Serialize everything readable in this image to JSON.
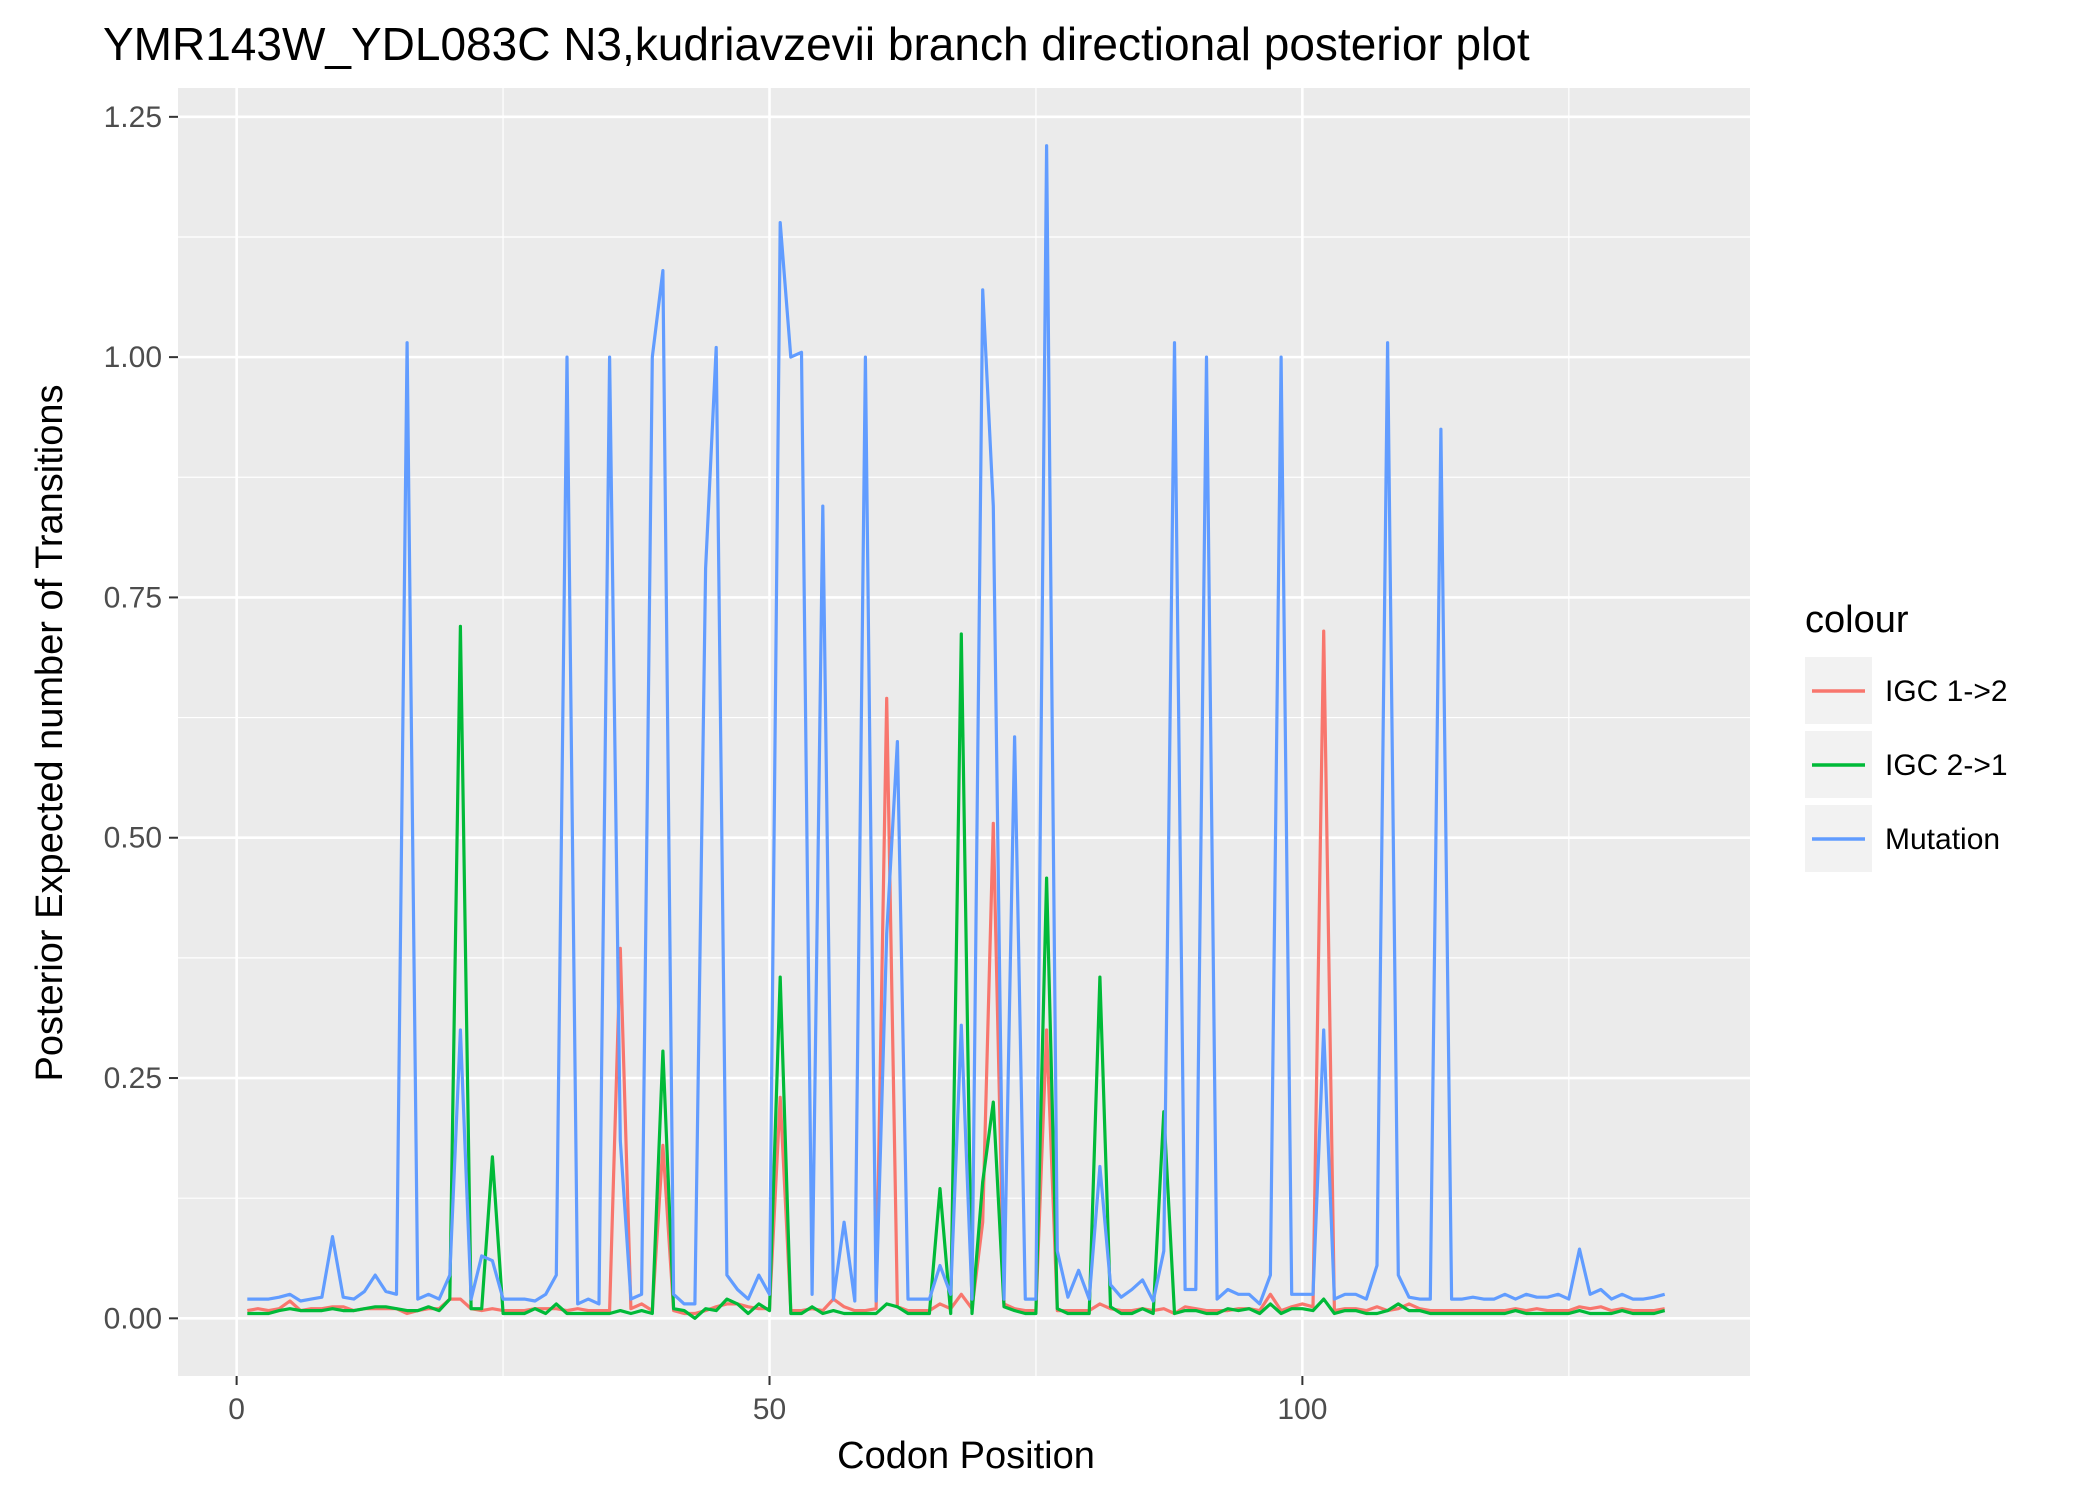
{
  "chart_data": {
    "type": "line",
    "title": "YMR143W_YDL083C N3,kudriavzevii branch directional posterior plot",
    "xlabel": "Codon Position",
    "ylabel": "Posterior Expected number of Transitions",
    "xlim": [
      -5.5,
      142
    ],
    "ylim": [
      -0.06,
      1.28
    ],
    "x_ticks": [
      0,
      50,
      100
    ],
    "y_ticks": [
      0.0,
      0.25,
      0.5,
      0.75,
      1.0,
      1.25
    ],
    "x_tick_labels": [
      "0",
      "50",
      "100"
    ],
    "y_tick_labels": [
      "0.00",
      "0.25",
      "0.50",
      "0.75",
      "1.00",
      "1.25"
    ],
    "grid": true,
    "legend": {
      "title": "colour",
      "position": "right"
    },
    "x_start": 1,
    "series": [
      {
        "name": "IGC 1->2",
        "color": "#F8766D",
        "values": [
          0.008,
          0.01,
          0.008,
          0.01,
          0.018,
          0.008,
          0.01,
          0.01,
          0.012,
          0.012,
          0.008,
          0.01,
          0.01,
          0.01,
          0.01,
          0.005,
          0.008,
          0.01,
          0.01,
          0.02,
          0.02,
          0.01,
          0.008,
          0.01,
          0.008,
          0.008,
          0.008,
          0.01,
          0.01,
          0.01,
          0.008,
          0.01,
          0.008,
          0.008,
          0.008,
          0.385,
          0.01,
          0.015,
          0.008,
          0.18,
          0.008,
          0.005,
          0.005,
          0.008,
          0.012,
          0.015,
          0.015,
          0.012,
          0.01,
          0.01,
          0.23,
          0.008,
          0.008,
          0.01,
          0.008,
          0.02,
          0.012,
          0.008,
          0.008,
          0.01,
          0.645,
          0.012,
          0.008,
          0.008,
          0.008,
          0.015,
          0.01,
          0.025,
          0.01,
          0.1,
          0.515,
          0.015,
          0.01,
          0.008,
          0.008,
          0.3,
          0.008,
          0.008,
          0.008,
          0.008,
          0.015,
          0.01,
          0.008,
          0.008,
          0.01,
          0.008,
          0.01,
          0.005,
          0.012,
          0.01,
          0.008,
          0.008,
          0.008,
          0.01,
          0.01,
          0.008,
          0.025,
          0.008,
          0.012,
          0.015,
          0.012,
          0.715,
          0.008,
          0.01,
          0.01,
          0.008,
          0.012,
          0.008,
          0.01,
          0.015,
          0.01,
          0.008,
          0.008,
          0.008,
          0.008,
          0.008,
          0.008,
          0.008,
          0.008,
          0.01,
          0.008,
          0.01,
          0.008,
          0.008,
          0.008,
          0.012,
          0.01,
          0.012,
          0.008,
          0.01,
          0.008,
          0.008,
          0.008,
          0.01
        ]
      },
      {
        "name": "IGC 2->1",
        "color": "#00BA38",
        "values": [
          0.005,
          0.005,
          0.005,
          0.008,
          0.01,
          0.008,
          0.008,
          0.008,
          0.01,
          0.008,
          0.008,
          0.01,
          0.012,
          0.012,
          0.01,
          0.008,
          0.008,
          0.012,
          0.008,
          0.02,
          0.72,
          0.01,
          0.01,
          0.168,
          0.005,
          0.005,
          0.005,
          0.01,
          0.005,
          0.015,
          0.005,
          0.005,
          0.005,
          0.005,
          0.005,
          0.008,
          0.005,
          0.008,
          0.005,
          0.278,
          0.01,
          0.008,
          0.0,
          0.01,
          0.008,
          0.02,
          0.015,
          0.005,
          0.015,
          0.008,
          0.355,
          0.005,
          0.005,
          0.012,
          0.005,
          0.008,
          0.005,
          0.005,
          0.005,
          0.005,
          0.015,
          0.012,
          0.005,
          0.005,
          0.005,
          0.135,
          0.005,
          0.712,
          0.005,
          0.142,
          0.225,
          0.012,
          0.008,
          0.005,
          0.005,
          0.458,
          0.01,
          0.005,
          0.005,
          0.005,
          0.355,
          0.012,
          0.005,
          0.005,
          0.01,
          0.005,
          0.215,
          0.005,
          0.008,
          0.008,
          0.005,
          0.005,
          0.01,
          0.008,
          0.01,
          0.005,
          0.015,
          0.005,
          0.01,
          0.01,
          0.008,
          0.02,
          0.005,
          0.008,
          0.008,
          0.005,
          0.005,
          0.008,
          0.015,
          0.008,
          0.008,
          0.005,
          0.005,
          0.005,
          0.005,
          0.005,
          0.005,
          0.005,
          0.005,
          0.008,
          0.005,
          0.005,
          0.005,
          0.005,
          0.005,
          0.008,
          0.005,
          0.005,
          0.005,
          0.008,
          0.005,
          0.005,
          0.005,
          0.008
        ]
      },
      {
        "name": "Mutation",
        "color": "#619CFF",
        "values": [
          0.02,
          0.02,
          0.02,
          0.022,
          0.025,
          0.018,
          0.02,
          0.022,
          0.085,
          0.022,
          0.02,
          0.028,
          0.045,
          0.028,
          0.025,
          1.015,
          0.02,
          0.025,
          0.02,
          0.045,
          0.3,
          0.02,
          0.065,
          0.06,
          0.02,
          0.02,
          0.02,
          0.018,
          0.025,
          0.045,
          1.0,
          0.015,
          0.02,
          0.015,
          1.0,
          0.185,
          0.02,
          0.025,
          1.0,
          1.09,
          0.025,
          0.015,
          0.015,
          0.78,
          1.01,
          0.045,
          0.03,
          0.02,
          0.045,
          0.025,
          1.14,
          1.0,
          1.005,
          0.025,
          0.845,
          0.02,
          0.1,
          0.018,
          1.0,
          0.018,
          0.4,
          0.6,
          0.02,
          0.02,
          0.02,
          0.055,
          0.025,
          0.305,
          0.02,
          1.07,
          0.845,
          0.02,
          0.605,
          0.02,
          0.02,
          1.22,
          0.07,
          0.022,
          0.05,
          0.02,
          0.158,
          0.035,
          0.022,
          0.03,
          0.04,
          0.018,
          0.07,
          1.015,
          0.03,
          0.03,
          1.0,
          0.02,
          0.03,
          0.025,
          0.025,
          0.015,
          0.045,
          1.0,
          0.025,
          0.025,
          0.025,
          0.3,
          0.02,
          0.025,
          0.025,
          0.02,
          0.055,
          1.015,
          0.045,
          0.022,
          0.02,
          0.02,
          0.925,
          0.02,
          0.02,
          0.022,
          0.02,
          0.02,
          0.025,
          0.02,
          0.025,
          0.022,
          0.022,
          0.025,
          0.02,
          0.072,
          0.025,
          0.03,
          0.02,
          0.025,
          0.02,
          0.02,
          0.022,
          0.025
        ]
      }
    ]
  }
}
